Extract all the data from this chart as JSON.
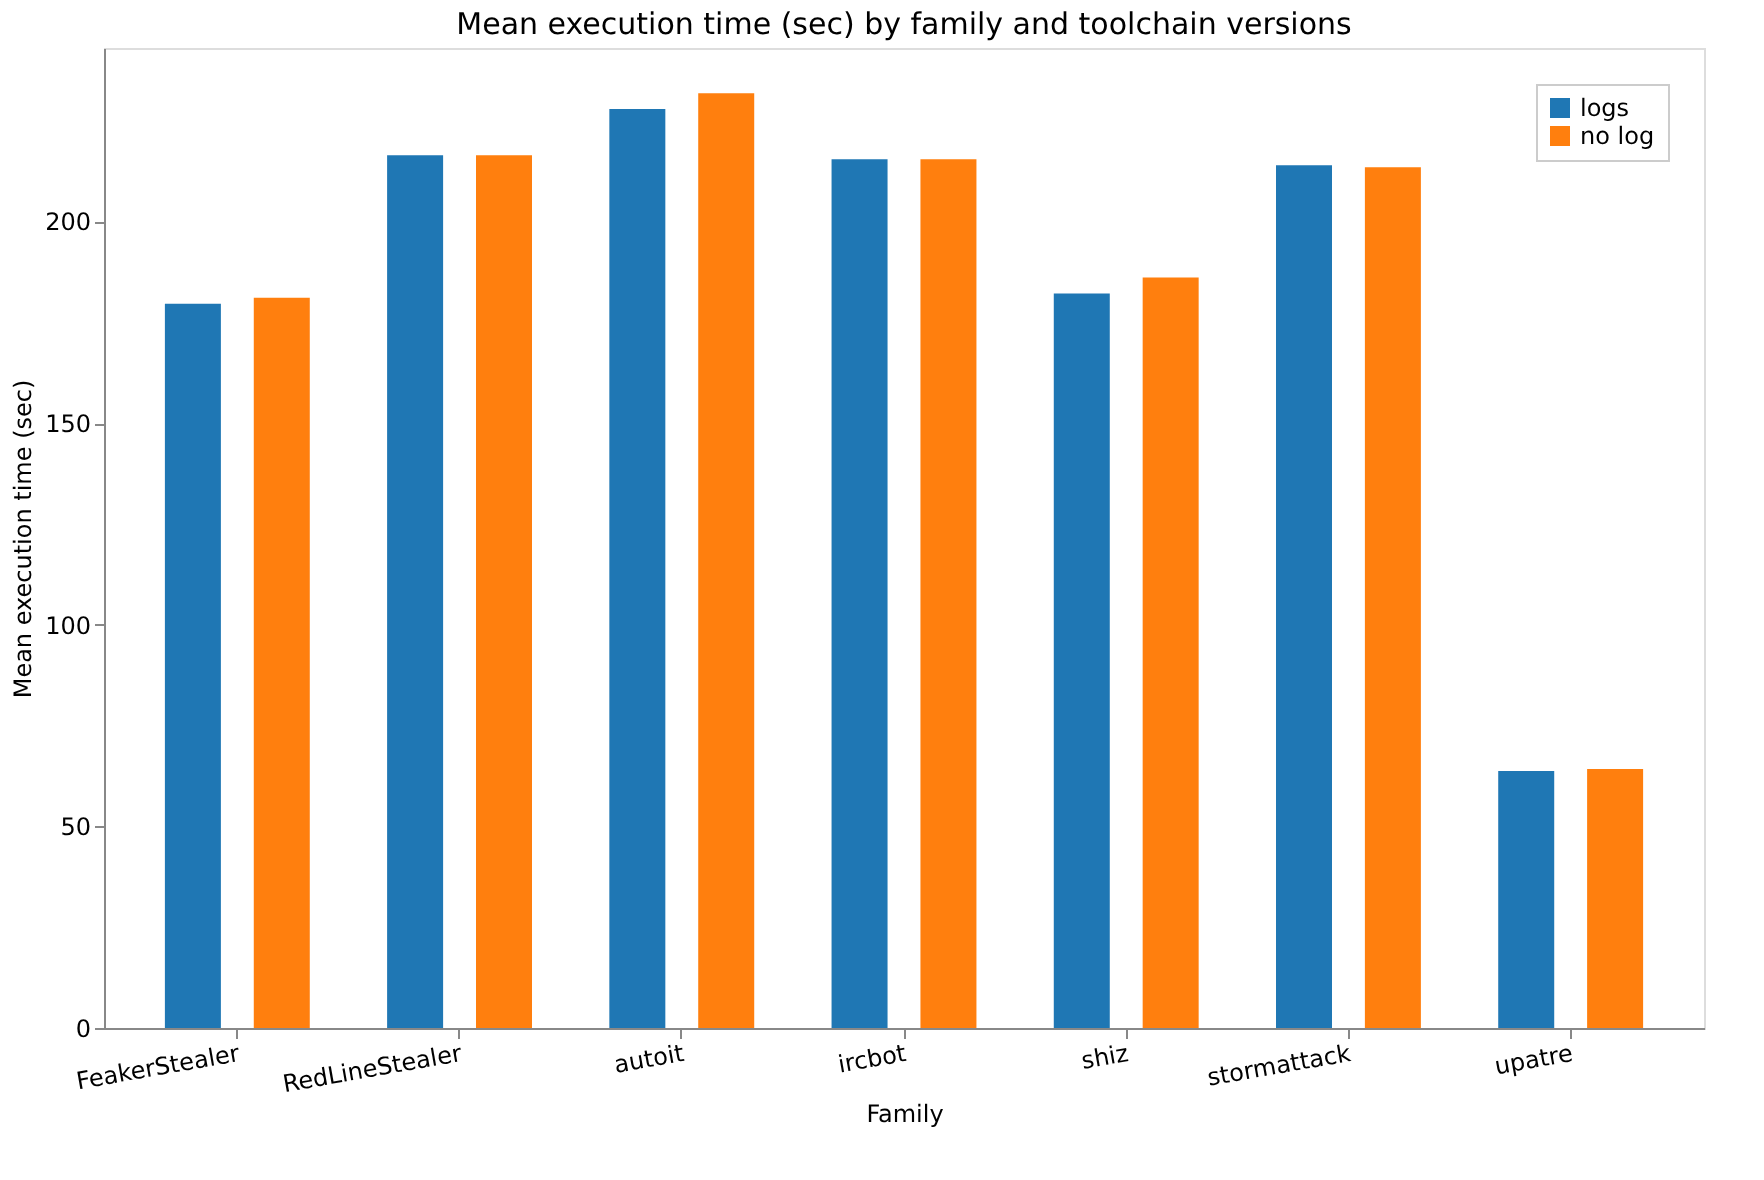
{
  "chart_data": {
    "type": "bar",
    "title": "Mean execution time (sec) by family and toolchain versions",
    "xlabel": "Family",
    "ylabel": "Mean execution time (sec)",
    "categories": [
      "FeakerStealer",
      "RedLineStealer",
      "autoit",
      "ircbot",
      "shiz",
      "stormattack",
      "upatre"
    ],
    "series": [
      {
        "name": "logs",
        "color": "#1f77b4",
        "values": [
          179.6,
          216.4,
          227.9,
          215.4,
          182.1,
          213.9,
          63.7
        ]
      },
      {
        "name": "no log",
        "color": "#ff7f0e",
        "values": [
          181.1,
          216.4,
          231.8,
          215.4,
          186.1,
          213.4,
          64.2
        ]
      }
    ],
    "ylim": [
      0,
      243
    ],
    "yticks": [
      0,
      50,
      100,
      150,
      200
    ],
    "grid": false,
    "legend": "top right"
  }
}
